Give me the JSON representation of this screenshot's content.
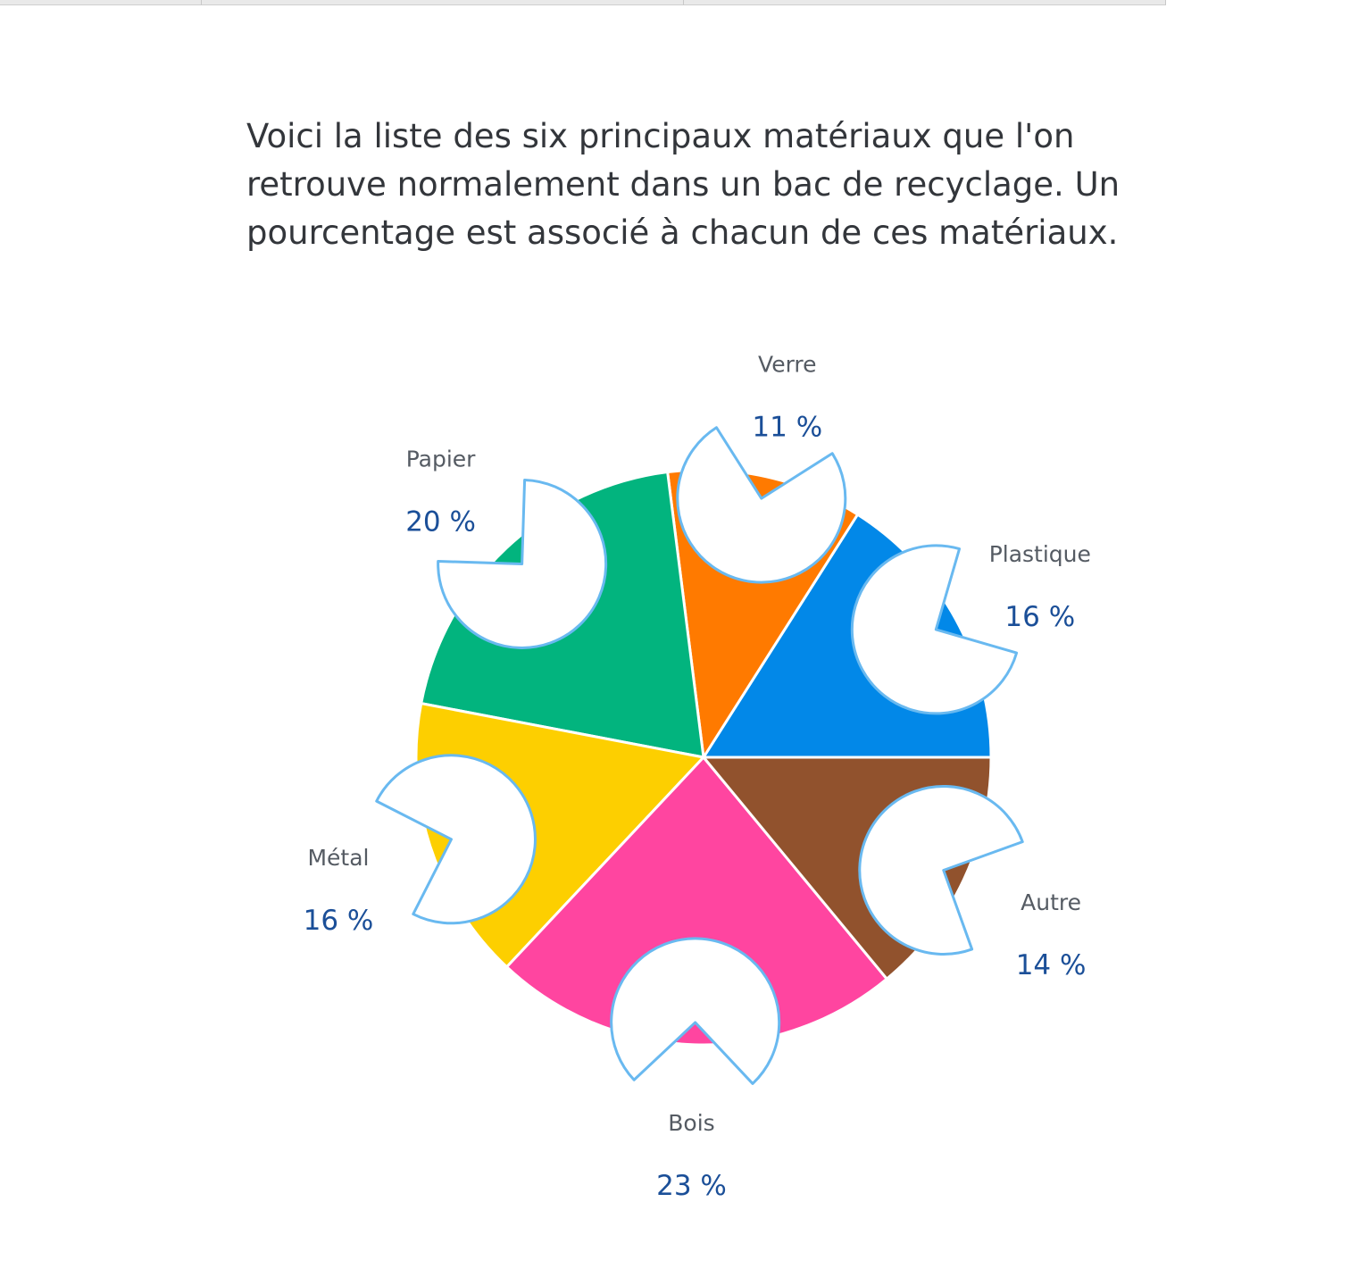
{
  "intro_text": "Voici la liste des six principaux matériaux que l'on retrouve normalement dans un bac de recyclage. Un pourcentage est associé à chacun de ces matériaux.",
  "colors": {
    "callout_border": "#69b9f0",
    "label_text": "#555b63",
    "value_text": "#1b4f98"
  },
  "chart_data": {
    "type": "pie",
    "title": "",
    "unit": "%",
    "slices": [
      {
        "label": "Plastique",
        "value": 16,
        "display": "16 %",
        "color": "#0288e8"
      },
      {
        "label": "Verre",
        "value": 11,
        "display": "11 %",
        "color": "#ff7a00"
      },
      {
        "label": "Papier",
        "value": 20,
        "display": "20 %",
        "color": "#02b47e"
      },
      {
        "label": "Métal",
        "value": 16,
        "display": "16 %",
        "color": "#fdcf00"
      },
      {
        "label": "Bois",
        "value": 23,
        "display": "23 %",
        "color": "#ff45a0"
      },
      {
        "label": "Autre",
        "value": 14,
        "display": "14 %",
        "color": "#91522d"
      }
    ]
  }
}
